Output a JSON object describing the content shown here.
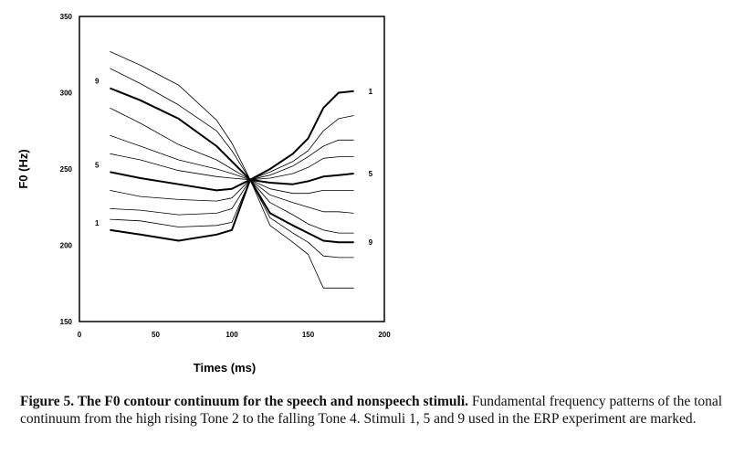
{
  "chart_data": {
    "type": "line",
    "ylabel": "F0 (Hz)",
    "xlabel": "Times (ms)",
    "xlim": [
      0,
      200
    ],
    "ylim": [
      150,
      350
    ],
    "xticks": [
      0,
      50,
      100,
      150,
      200
    ],
    "yticks": [
      150,
      200,
      250,
      300,
      350
    ],
    "x": [
      20,
      40,
      65,
      90,
      100,
      112,
      125,
      140,
      150,
      160,
      170,
      180
    ],
    "series": [
      {
        "label_left": "1",
        "label_right": "",
        "bold": true,
        "values": [
          210,
          207,
          203,
          207,
          210,
          243,
          250,
          260,
          270,
          290,
          300,
          301
        ]
      },
      {
        "label_left": "",
        "label_right": "",
        "bold": false,
        "values": [
          217,
          216,
          212,
          213,
          215,
          243,
          248,
          255,
          262,
          275,
          283,
          285
        ]
      },
      {
        "label_left": "",
        "label_right": "",
        "bold": false,
        "values": [
          224,
          223,
          220,
          221,
          224,
          243,
          246,
          252,
          258,
          265,
          269,
          269
        ]
      },
      {
        "label_left": "",
        "label_right": "",
        "bold": false,
        "values": [
          236,
          232,
          230,
          229,
          231,
          243,
          244,
          247,
          251,
          257,
          258,
          258
        ]
      },
      {
        "label_left": "5",
        "label_right": "5",
        "bold": true,
        "values": [
          248,
          244,
          240,
          236,
          237,
          243,
          241,
          240,
          242,
          245,
          246,
          247
        ]
      },
      {
        "label_left": "",
        "label_right": "",
        "bold": false,
        "values": [
          260,
          256,
          249,
          245,
          244,
          243,
          237,
          234,
          234,
          236,
          236,
          236
        ]
      },
      {
        "label_left": "",
        "label_right": "",
        "bold": false,
        "values": [
          272,
          265,
          256,
          250,
          247,
          243,
          233,
          228,
          225,
          222,
          222,
          221
        ]
      },
      {
        "label_left": "",
        "label_right": "",
        "bold": false,
        "values": [
          290,
          280,
          266,
          256,
          250,
          243,
          228,
          220,
          214,
          210,
          208,
          208
        ]
      },
      {
        "label_left": "9",
        "label_right": "9",
        "bold": true,
        "values": [
          303,
          295,
          283,
          265,
          255,
          243,
          221,
          213,
          208,
          203,
          202,
          202
        ]
      },
      {
        "label_left": "",
        "label_right": "",
        "bold": false,
        "values": [
          316,
          306,
          292,
          275,
          262,
          243,
          218,
          208,
          202,
          193,
          192,
          192
        ]
      },
      {
        "label_left": "",
        "label_right": "1",
        "bold": false,
        "values": [
          327,
          318,
          305,
          282,
          267,
          243,
          213,
          202,
          194,
          172,
          172,
          172
        ]
      }
    ]
  },
  "caption": {
    "bold": "Figure 5.  The F0 contour continuum for the speech and nonspeech stimuli.",
    "rest": " Fundamental frequency patterns of the tonal continuum from the high rising Tone 2 to the falling Tone 4. Stimuli 1, 5 and 9 used in the ERP experiment are marked."
  }
}
